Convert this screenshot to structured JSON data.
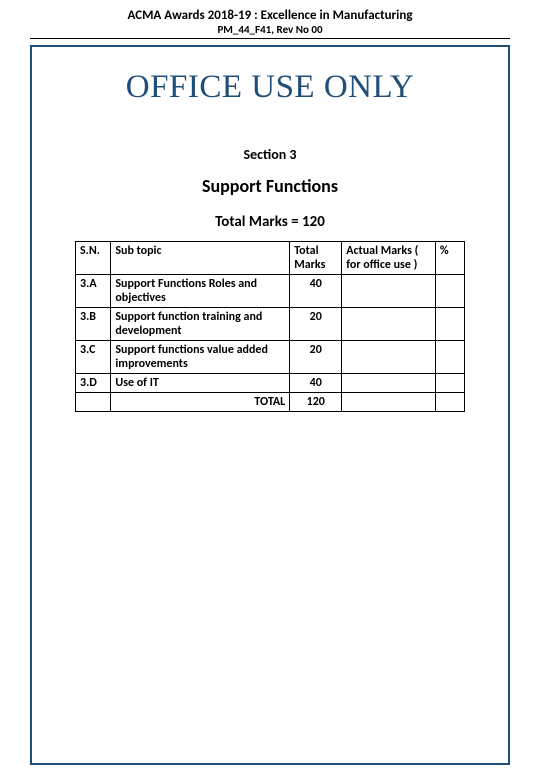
{
  "header": {
    "title": "ACMA  Awards 2018-19 :  Excellence in Manufacturing",
    "subtitle": "PM_44_F41, Rev No 00"
  },
  "banner": "OFFICE USE ONLY",
  "section": {
    "label": "Section 3",
    "title": "Support  Functions",
    "total_marks_text": "Total Marks  = 120"
  },
  "table": {
    "columns": {
      "sn": "S.N.",
      "subtopic": "Sub topic",
      "total_marks": "Total Marks",
      "actual_marks": "Actual Marks ( for office use )",
      "percent": "%"
    },
    "rows": [
      {
        "sn": "3.A",
        "subtopic": "Support  Functions  Roles and objectives",
        "total_marks": "40",
        "actual_marks": "",
        "percent": ""
      },
      {
        "sn": "3.B",
        "subtopic": " Support  function training and development",
        "total_marks": "20",
        "actual_marks": "",
        "percent": ""
      },
      {
        "sn": "3.C",
        "subtopic": "Support functions value added  improvements",
        "total_marks": "20",
        "actual_marks": "",
        "percent": ""
      },
      {
        "sn": "3.D",
        "subtopic": "Use  of  IT",
        "total_marks": "40",
        "actual_marks": "",
        "percent": ""
      }
    ],
    "total_row": {
      "label": "TOTAL",
      "total_marks": "120",
      "actual_marks": "",
      "percent": ""
    }
  },
  "colors": {
    "frame_border": "#1f4e79",
    "banner_text": "#1f4e79",
    "text": "#000000",
    "background": "#ffffff"
  }
}
